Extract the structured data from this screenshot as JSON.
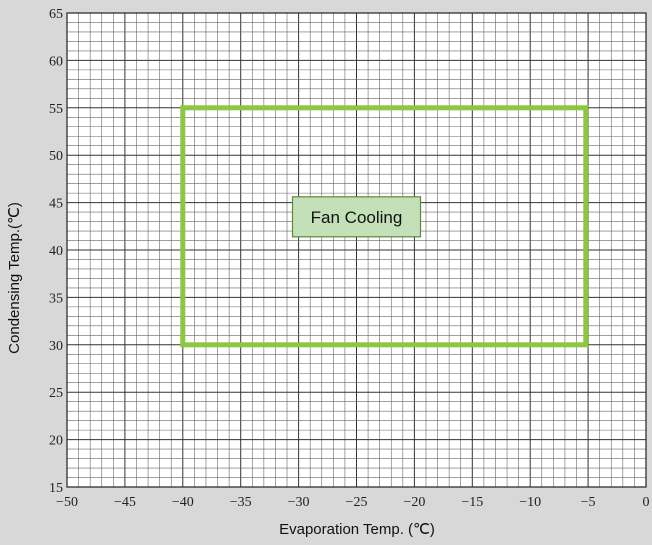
{
  "chart_data": {
    "type": "area",
    "title": "",
    "xlabel": "Evaporation Temp. (℃)",
    "ylabel": "Condensing Temp.(℃)",
    "xlim": [
      -50,
      0
    ],
    "ylim": [
      15,
      65
    ],
    "x_ticks": [
      -50,
      -45,
      -40,
      -35,
      -30,
      -25,
      -20,
      -15,
      -10,
      -5,
      0
    ],
    "y_ticks": [
      15,
      20,
      25,
      30,
      35,
      40,
      45,
      50,
      55,
      60,
      65
    ],
    "x_tick_labels": [
      "−50",
      "−45",
      "−40",
      "−35",
      "−30",
      "−25",
      "−20",
      "−15",
      "−10",
      "−5",
      "0"
    ],
    "y_tick_labels": [
      "15",
      "20",
      "25",
      "30",
      "35",
      "40",
      "45",
      "50",
      "55",
      "60",
      "65"
    ],
    "grid": true,
    "regions": [
      {
        "name": "Fan Cooling",
        "x_range": [
          -40,
          -5.2
        ],
        "y_range": [
          30,
          55
        ],
        "color": "#8dc63f",
        "label_at": [
          -25,
          43.5
        ],
        "label_bg": "#c3e0b8",
        "label_border": "#5a8a3a"
      }
    ]
  }
}
